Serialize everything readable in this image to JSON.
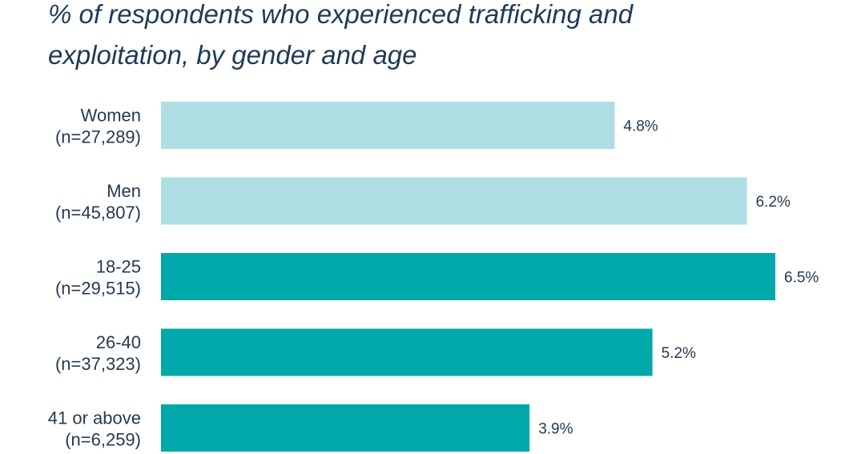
{
  "chart_data": {
    "type": "bar",
    "orientation": "horizontal",
    "title_lines": [
      "% of respondents who experienced trafficking and",
      "exploitation, by gender and age"
    ],
    "categories": [
      [
        "Women",
        "(n=27,289)"
      ],
      [
        "Men",
        "(n=45,807)"
      ],
      [
        "18-25",
        "(n=29,515)"
      ],
      [
        "26-40",
        "(n=37,323)"
      ],
      [
        "41 or above",
        "(n=6,259)"
      ]
    ],
    "values": [
      4.8,
      6.2,
      6.5,
      5.2,
      3.9
    ],
    "value_labels": [
      "4.8%",
      "6.2%",
      "6.5%",
      "5.2%",
      "3.9%"
    ],
    "colors": [
      "#afdfe4",
      "#afdfe4",
      "#00a8aa",
      "#00a8aa",
      "#00a8aa"
    ],
    "xlim": [
      0,
      6.5
    ],
    "grid": false,
    "legend": "none"
  }
}
